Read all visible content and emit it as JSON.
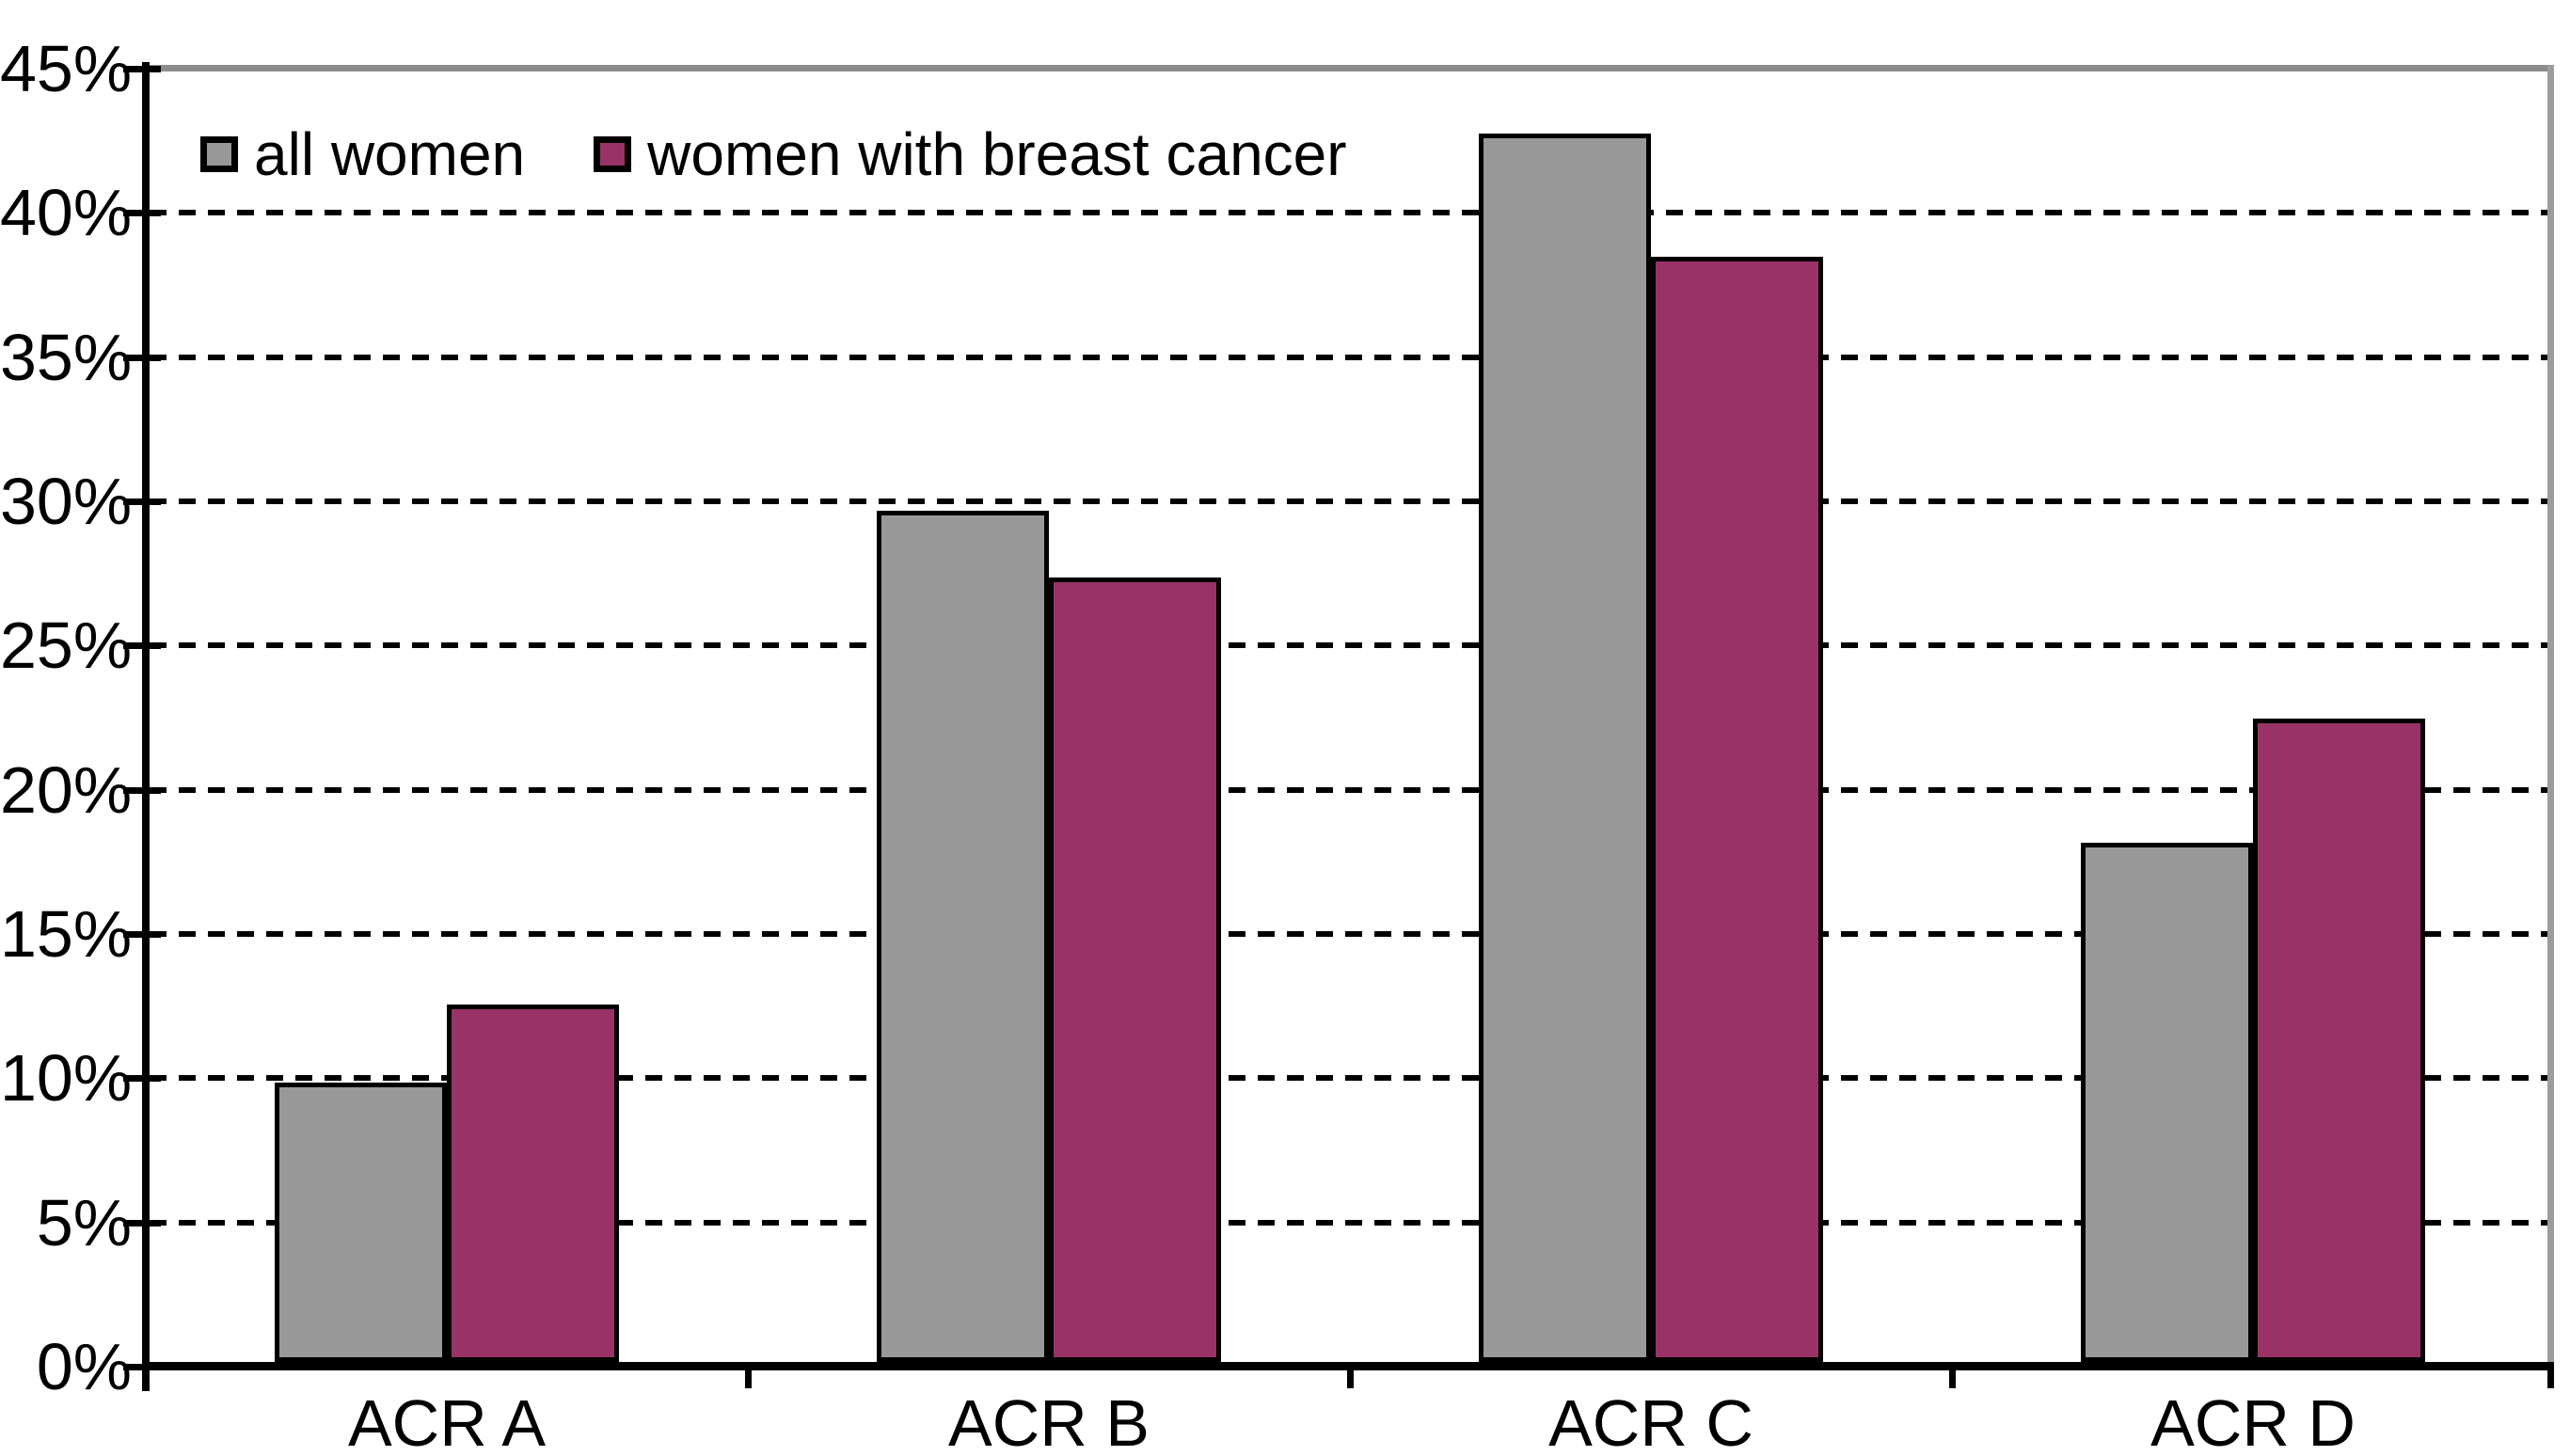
{
  "chart_data": {
    "type": "bar",
    "title": "",
    "xlabel": "",
    "ylabel": "",
    "categories": [
      "ACR A",
      "ACR B",
      "ACR C",
      "ACR D"
    ],
    "series": [
      {
        "name": "all women",
        "color": "#999999",
        "values": [
          9.7,
          29.5,
          42.6,
          18.0
        ]
      },
      {
        "name": "women with breast cancer",
        "color": "#993366",
        "values": [
          12.4,
          27.2,
          38.3,
          22.3
        ]
      }
    ],
    "ylim": [
      0,
      45
    ],
    "ytick_step": 5,
    "ytick_labels": [
      "0%",
      "5%",
      "10%",
      "15%",
      "20%",
      "25%",
      "30%",
      "35%",
      "40%",
      "45%"
    ],
    "grid": "horizontal-dashed",
    "legend_position": "top-left-inside",
    "bar_border_color": "#000000",
    "gridline_color": "#000000",
    "frame_color": "#8c8c8c"
  }
}
